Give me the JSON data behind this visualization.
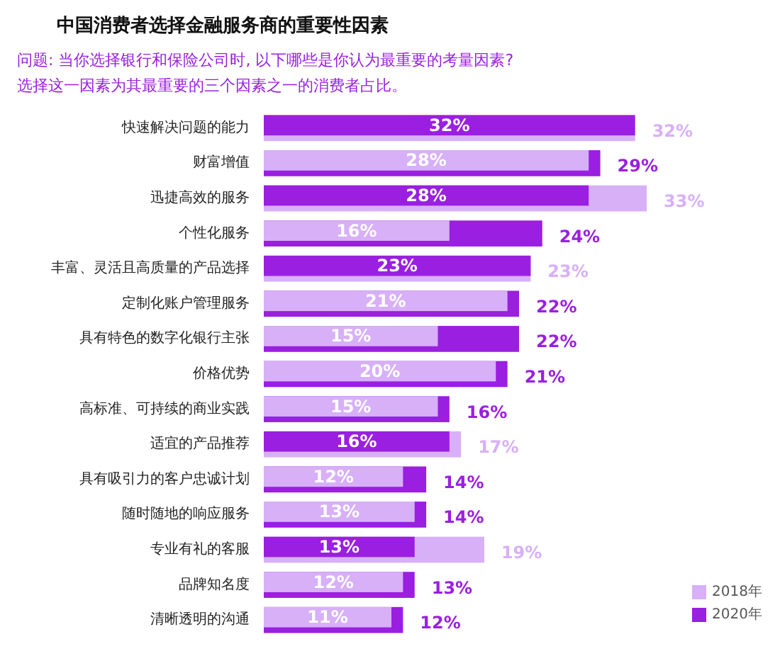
{
  "chart_data": {
    "type": "bar",
    "orientation": "horizontal",
    "title": "中国消费者选择金融服务商的重要性因素",
    "subtitle": "问题: 当你选择银行和保险公司时, 以下哪些是你认为最重要的考量因素?\n选择这一因素为其最重要的三个因素之一的消费者占比。",
    "categories": [
      "快速解决问题的能力",
      "财富增值",
      "迅捷高效的服务",
      "个性化服务",
      "丰富、灵活且高质量的产品选择",
      "定制化账户管理服务",
      "具有特色的数字化银行主张",
      "价格优势",
      "高标准、可持续的商业实践",
      "适宜的产品推荐",
      "具有吸引力的客户忠诚计划",
      "随时随地的响应服务",
      "专业有礼的客服",
      "品牌知名度",
      "清晰透明的沟通"
    ],
    "series": [
      {
        "name": "2018年",
        "color": "#d7b0f7",
        "values": [
          32,
          28,
          33,
          16,
          23,
          21,
          15,
          20,
          15,
          17,
          12,
          13,
          19,
          12,
          11
        ],
        "value_labels": [
          "32%",
          "28%",
          "33%",
          "16%",
          "23%",
          "21%",
          "15%",
          "20%",
          "15%",
          "17%",
          "12%",
          "13%",
          "19%",
          "12%",
          "11%"
        ]
      },
      {
        "name": "2020年",
        "color": "#9a1fe0",
        "values": [
          32,
          29,
          28,
          24,
          23,
          22,
          22,
          21,
          16,
          16,
          14,
          14,
          13,
          13,
          12
        ],
        "value_labels": [
          "32%",
          "29%",
          "28%",
          "24%",
          "23%",
          "22%",
          "22%",
          "21%",
          "16%",
          "16%",
          "14%",
          "14%",
          "13%",
          "13%",
          "12%"
        ]
      }
    ],
    "legend": "bottom right"
  }
}
